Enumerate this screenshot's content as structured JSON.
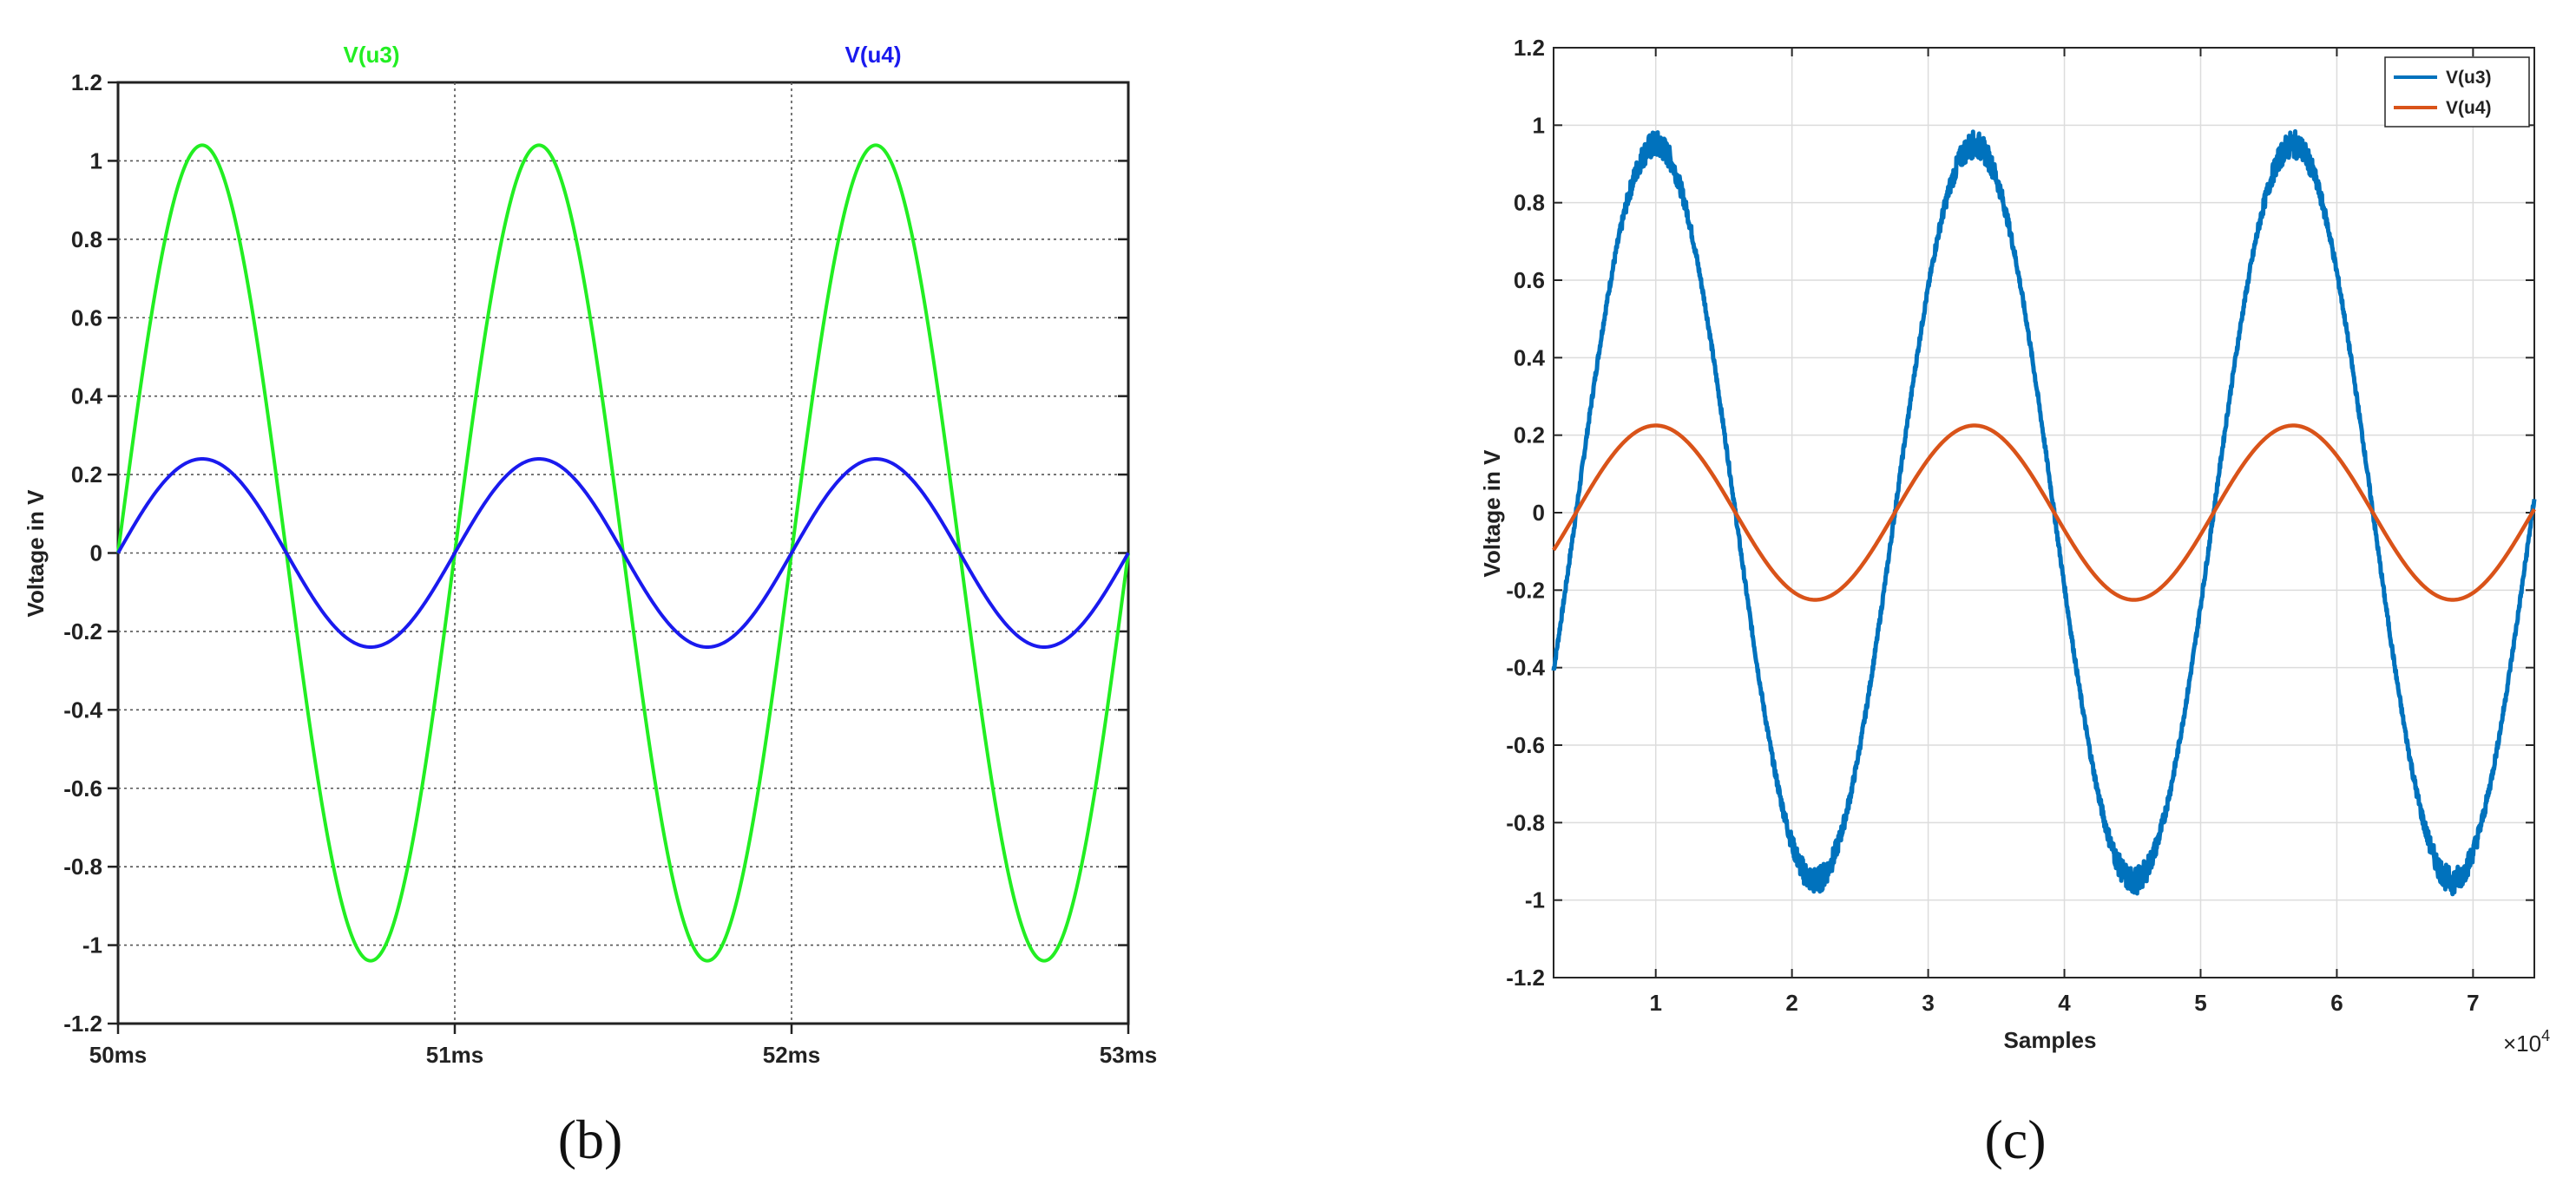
{
  "panels": {
    "b": {
      "label": "(b)"
    },
    "c": {
      "label": "(c)"
    }
  },
  "chart_data": [
    {
      "type": "line",
      "panel": "b",
      "title": "",
      "xlabel": "",
      "ylabel": "Voltage in V",
      "x_ticks": [
        "50ms",
        "51ms",
        "52ms",
        "53ms"
      ],
      "x_unit": "ms",
      "xlim": [
        50,
        53
      ],
      "ylim": [
        -1.2,
        1.2
      ],
      "y_ticks": [
        -1.2,
        -1.0,
        -0.8,
        -0.6,
        -0.4,
        -0.2,
        0,
        0.2,
        0.4,
        0.6,
        0.8,
        1.0,
        1.2
      ],
      "y_tick_labels": [
        "-1.2",
        "-1",
        "-0.8",
        "-0.6",
        "-0.4",
        "-0.2",
        "0",
        "0.2",
        "0.4",
        "0.6",
        "0.8",
        "1",
        "1.2"
      ],
      "grid": "dotted",
      "legend": "top-labels",
      "series": [
        {
          "name": "V(u3)",
          "color": "#22ee22",
          "waveform": "sine",
          "amplitude": 1.04,
          "frequency_per_ms": 1,
          "phase_start": 50,
          "offset": 0
        },
        {
          "name": "V(u4)",
          "color": "#1a1aee",
          "waveform": "sine",
          "amplitude": 0.24,
          "frequency_per_ms": 1,
          "phase_start": 50,
          "offset": 0
        }
      ]
    },
    {
      "type": "line",
      "panel": "c",
      "title": "",
      "xlabel": "Samples",
      "ylabel": "Voltage in V",
      "x_multiplier": "×10^4",
      "x_ticks": [
        1,
        2,
        3,
        4,
        5,
        6,
        7
      ],
      "xlim": [
        0.25,
        7.45
      ],
      "ylim": [
        -1.2,
        1.2
      ],
      "y_ticks": [
        -1.2,
        -1.0,
        -0.8,
        -0.6,
        -0.4,
        -0.2,
        0,
        0.2,
        0.4,
        0.6,
        0.8,
        1.0,
        1.2
      ],
      "y_tick_labels": [
        "-1.2",
        "-1",
        "-0.8",
        "-0.6",
        "-0.4",
        "-0.2",
        "0",
        "0.2",
        "0.4",
        "0.6",
        "0.8",
        "1",
        "1.2"
      ],
      "grid": "solid-light",
      "legend": "top-right",
      "series": [
        {
          "name": "V(u3)",
          "color": "#0072bd",
          "waveform": "noisy-sine",
          "amplitude": 0.95,
          "peak_x": 1.0,
          "period": 2.34,
          "offset": 0
        },
        {
          "name": "V(u4)",
          "color": "#d95319",
          "waveform": "sine",
          "amplitude": 0.225,
          "peak_x": 1.0,
          "period": 2.34,
          "offset": 0
        }
      ]
    }
  ]
}
